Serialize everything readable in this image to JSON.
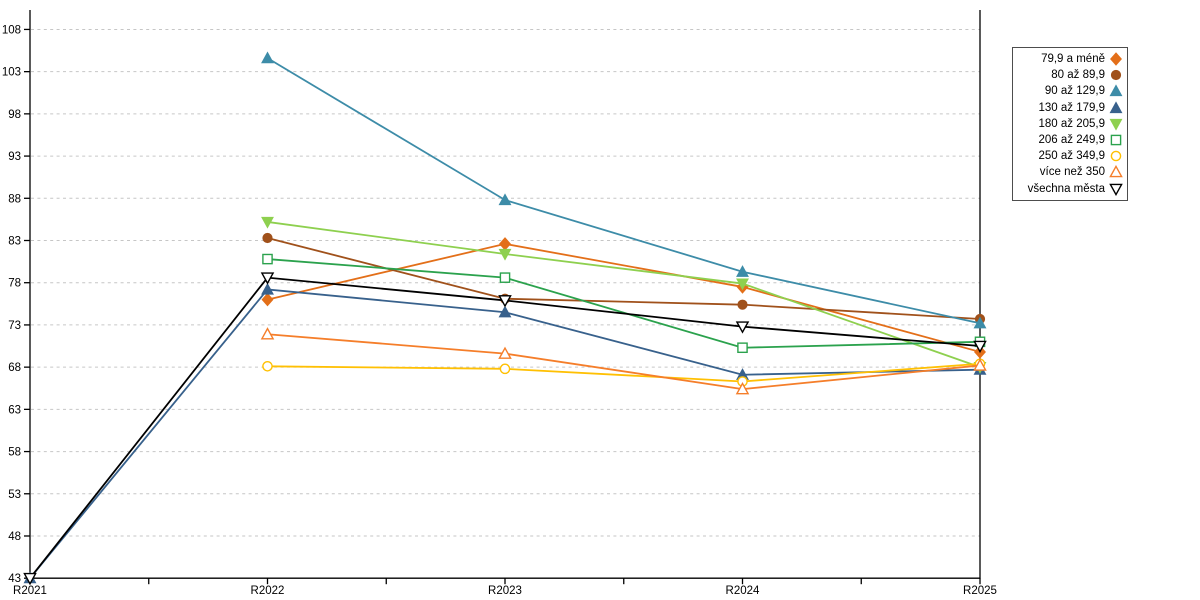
{
  "chart_data": {
    "type": "line",
    "title": "",
    "xlabel": "",
    "ylabel": "",
    "categories": [
      "R2021",
      "R2022",
      "R2023",
      "R2024",
      "R2025"
    ],
    "ylim": [
      43,
      108
    ],
    "yticks": [
      43,
      48,
      53,
      58,
      63,
      68,
      73,
      78,
      83,
      88,
      93,
      98,
      103,
      108
    ],
    "grid": "horizontal-dashed",
    "gridline_color": "#c6c6c6",
    "axis_color": "#000000",
    "legend_position": "right",
    "series": [
      {
        "name": "79,9 a méně",
        "marker": "diamond-filled",
        "color": "#e36f19",
        "values": [
          null,
          76.0,
          82.6,
          77.5,
          69.8
        ]
      },
      {
        "name": "80 až 89,9",
        "marker": "circle-filled",
        "color": "#a0511b",
        "values": [
          null,
          83.3,
          76.1,
          75.4,
          73.7
        ]
      },
      {
        "name": "90 až 129,9",
        "marker": "triangle-up-filled",
        "color": "#3d8ca8",
        "values": [
          null,
          104.6,
          87.8,
          79.3,
          73.2
        ]
      },
      {
        "name": "130 až 179,9",
        "marker": "triangle-up-filled",
        "color": "#38618c",
        "values": [
          43.0,
          77.2,
          74.5,
          67.1,
          67.7
        ]
      },
      {
        "name": "180 až 205,9",
        "marker": "triangle-down-filled",
        "color": "#8ed04f",
        "values": [
          null,
          85.2,
          81.4,
          77.9,
          68.0
        ]
      },
      {
        "name": "206 až 249,9",
        "marker": "square-open",
        "color": "#2ba24d",
        "values": [
          null,
          80.8,
          78.6,
          70.3,
          71.0
        ]
      },
      {
        "name": "250 až 349,9",
        "marker": "circle-open",
        "color": "#ffc003",
        "values": [
          null,
          68.1,
          67.8,
          66.3,
          68.4
        ]
      },
      {
        "name": "více než 350",
        "marker": "triangle-up-open",
        "color": "#f57e2a",
        "values": [
          null,
          71.9,
          69.6,
          65.4,
          68.2
        ]
      },
      {
        "name": "všechna města",
        "marker": "triangle-down-open",
        "color": "#000000",
        "values": [
          43.0,
          78.6,
          75.9,
          72.8,
          70.5
        ]
      }
    ]
  }
}
